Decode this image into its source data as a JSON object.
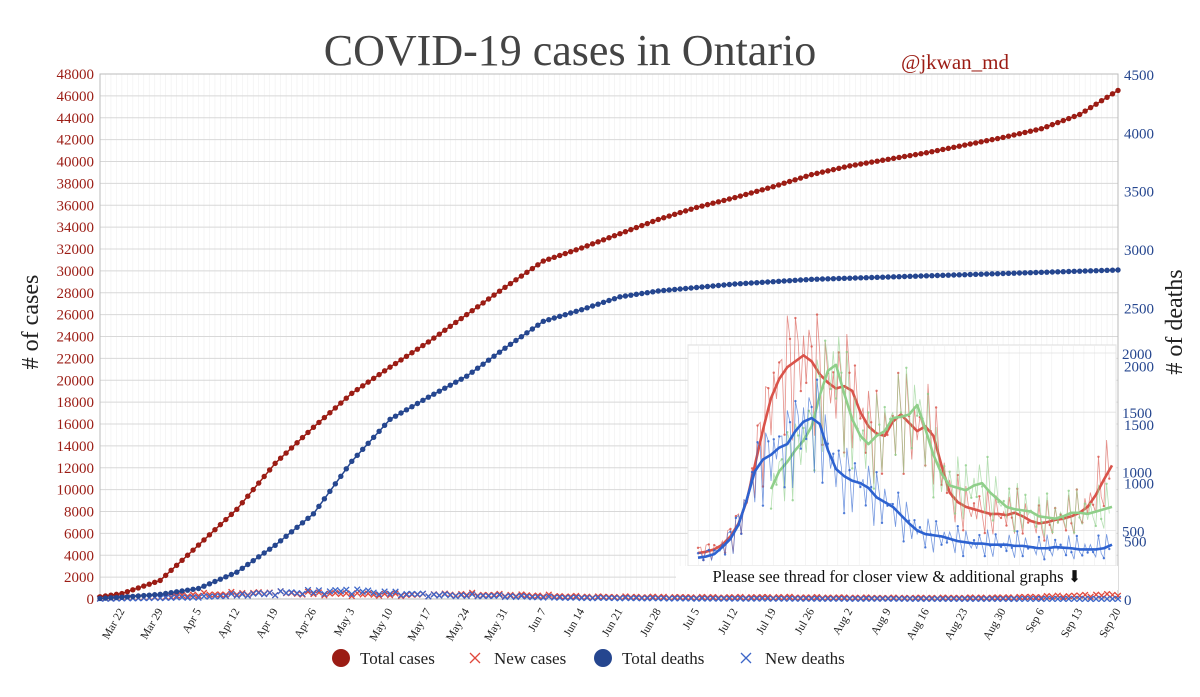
{
  "colors": {
    "cases": "#9b1c14",
    "cases_x": "#e0483c",
    "deaths": "#25468f",
    "deaths_x": "#3d66c8",
    "grid": "#d8d8d8",
    "title": "#444444",
    "inset_red": "#d9534a",
    "inset_green": "#8fcf8a",
    "inset_blue": "#2d62d0"
  },
  "chart_data": [
    {
      "type": "line",
      "title": "COVID-19 cases in Ontario",
      "author_tag": "@jkwan_md",
      "ylabel": "# of cases",
      "y2label": "# of deaths",
      "ylim": [
        0,
        48000
      ],
      "y2lim": [
        0,
        4500
      ],
      "yticks": [
        0,
        2000,
        4000,
        6000,
        8000,
        10000,
        12000,
        14000,
        16000,
        18000,
        20000,
        22000,
        24000,
        26000,
        28000,
        30000,
        32000,
        34000,
        36000,
        38000,
        40000,
        42000,
        44000,
        46000,
        48000
      ],
      "y2ticks": [
        0,
        500,
        1000,
        1500,
        2000,
        2500,
        3000,
        3500,
        4000,
        4500
      ],
      "x_start": "Mar 18",
      "x_end": "Sep 20",
      "num_days": 187,
      "xtick_labels": [
        "Mar 22",
        "Mar 29",
        "Apr 5",
        "Apr 12",
        "Apr 19",
        "Apr 26",
        "May 3",
        "May 10",
        "May 17",
        "May 24",
        "May 31",
        "Jun 7",
        "Jun 14",
        "Jun 21",
        "Jun 28",
        "Jul 5",
        "Jul 12",
        "Jul 19",
        "Jul 26",
        "Aug 2",
        "Aug 9",
        "Aug 16",
        "Aug 23",
        "Aug 30",
        "Sep 6",
        "Sep 13",
        "Sep 20"
      ],
      "xtick_day_index": [
        4,
        11,
        18,
        25,
        32,
        39,
        46,
        53,
        60,
        67,
        74,
        81,
        88,
        95,
        102,
        109,
        116,
        123,
        130,
        137,
        144,
        151,
        158,
        165,
        172,
        179,
        186
      ],
      "legend_position": "bottom",
      "series": [
        {
          "name": "Total cases",
          "axis": "left",
          "marker": "circle",
          "keypoints_day": [
            0,
            4,
            11,
            16,
            25,
            32,
            39,
            46,
            53,
            60,
            67,
            74,
            81,
            88,
            95,
            102,
            109,
            116,
            123,
            130,
            137,
            144,
            151,
            158,
            165,
            172,
            179,
            186
          ],
          "keypoints_value": [
            200,
            500,
            1700,
            4000,
            8200,
            12400,
            15700,
            18800,
            21200,
            23500,
            26000,
            28500,
            30900,
            32100,
            33400,
            34700,
            35800,
            36700,
            37700,
            38800,
            39600,
            40200,
            40800,
            41500,
            42200,
            43000,
            44300,
            46500
          ]
        },
        {
          "name": "New cases",
          "axis": "left",
          "marker": "x",
          "keypoints_day": [
            0,
            11,
            18,
            25,
            32,
            39,
            46,
            53,
            60,
            67,
            74,
            81,
            88,
            95,
            102,
            109,
            116,
            123,
            130,
            137,
            144,
            151,
            158,
            165,
            172,
            179,
            186
          ],
          "keypoints_value": [
            50,
            150,
            400,
            480,
            550,
            500,
            450,
            380,
            380,
            420,
            350,
            300,
            200,
            180,
            170,
            150,
            150,
            160,
            140,
            120,
            100,
            100,
            110,
            130,
            200,
            300,
            400
          ]
        },
        {
          "name": "Total deaths",
          "axis": "right",
          "marker": "circle",
          "keypoints_day": [
            0,
            4,
            11,
            18,
            25,
            32,
            39,
            46,
            53,
            60,
            67,
            74,
            81,
            88,
            95,
            102,
            109,
            116,
            123,
            130,
            137,
            144,
            151,
            158,
            165,
            172,
            179,
            186
          ],
          "keypoints_value": [
            5,
            15,
            40,
            90,
            230,
            460,
            730,
            1180,
            1540,
            1730,
            1910,
            2150,
            2380,
            2480,
            2590,
            2640,
            2670,
            2700,
            2720,
            2740,
            2750,
            2760,
            2770,
            2780,
            2790,
            2800,
            2810,
            2820
          ]
        },
        {
          "name": "New deaths",
          "axis": "right",
          "marker": "x",
          "keypoints_day": [
            0,
            18,
            25,
            32,
            39,
            46,
            53,
            60,
            67,
            74,
            81,
            88,
            95,
            102,
            109,
            116,
            123,
            130,
            137,
            144,
            151,
            158,
            165,
            172,
            179,
            186
          ],
          "keypoints_value": [
            2,
            15,
            35,
            50,
            60,
            70,
            50,
            35,
            30,
            25,
            15,
            10,
            8,
            6,
            4,
            3,
            3,
            2,
            2,
            2,
            1,
            1,
            1,
            1,
            1,
            1
          ]
        }
      ]
    },
    {
      "type": "line",
      "inset": true,
      "ylim": [
        0,
        2000
      ],
      "yticks": [
        500,
        1000,
        1500,
        2000
      ],
      "series": [
        {
          "name": "red",
          "values": [
            310,
            320,
            340,
            380,
            450,
            560,
            750,
            1050,
            1350,
            1620,
            1780,
            1880,
            1930,
            1980,
            1930,
            1820,
            1750,
            1700,
            1720,
            1680,
            1500,
            1380,
            1320,
            1300,
            1420,
            1480,
            1410,
            1340,
            1380,
            1300,
            1050,
            820,
            740,
            700,
            680,
            660,
            640,
            640,
            630,
            650,
            620,
            580,
            560,
            570,
            590,
            600,
            620,
            650,
            700,
            800,
            930,
            1050
          ]
        },
        {
          "name": "green",
          "values": [
            null,
            null,
            null,
            null,
            null,
            null,
            null,
            null,
            null,
            850,
            1000,
            1080,
            1180,
            1260,
            1380,
            1640,
            1850,
            1900,
            1660,
            1440,
            1300,
            1230,
            1300,
            1340,
            1450,
            1460,
            1480,
            1560,
            1360,
            1140,
            980,
            880,
            860,
            840,
            880,
            900,
            820,
            760,
            700,
            680,
            670,
            660,
            620,
            610,
            600,
            620,
            650,
            650,
            640,
            660,
            680,
            700
          ]
        },
        {
          "name": "blue",
          "values": [
            270,
            280,
            300,
            360,
            430,
            550,
            760,
            1000,
            1100,
            1140,
            1200,
            1230,
            1340,
            1420,
            1450,
            1400,
            1180,
            1020,
            960,
            920,
            900,
            860,
            780,
            740,
            700,
            630,
            560,
            500,
            470,
            460,
            450,
            430,
            410,
            400,
            390,
            390,
            380,
            380,
            380,
            370,
            370,
            360,
            350,
            350,
            360,
            355,
            350,
            340,
            340,
            340,
            350,
            380
          ]
        }
      ],
      "caption": "Please see thread for closer view & additional graphs ⬇"
    }
  ]
}
